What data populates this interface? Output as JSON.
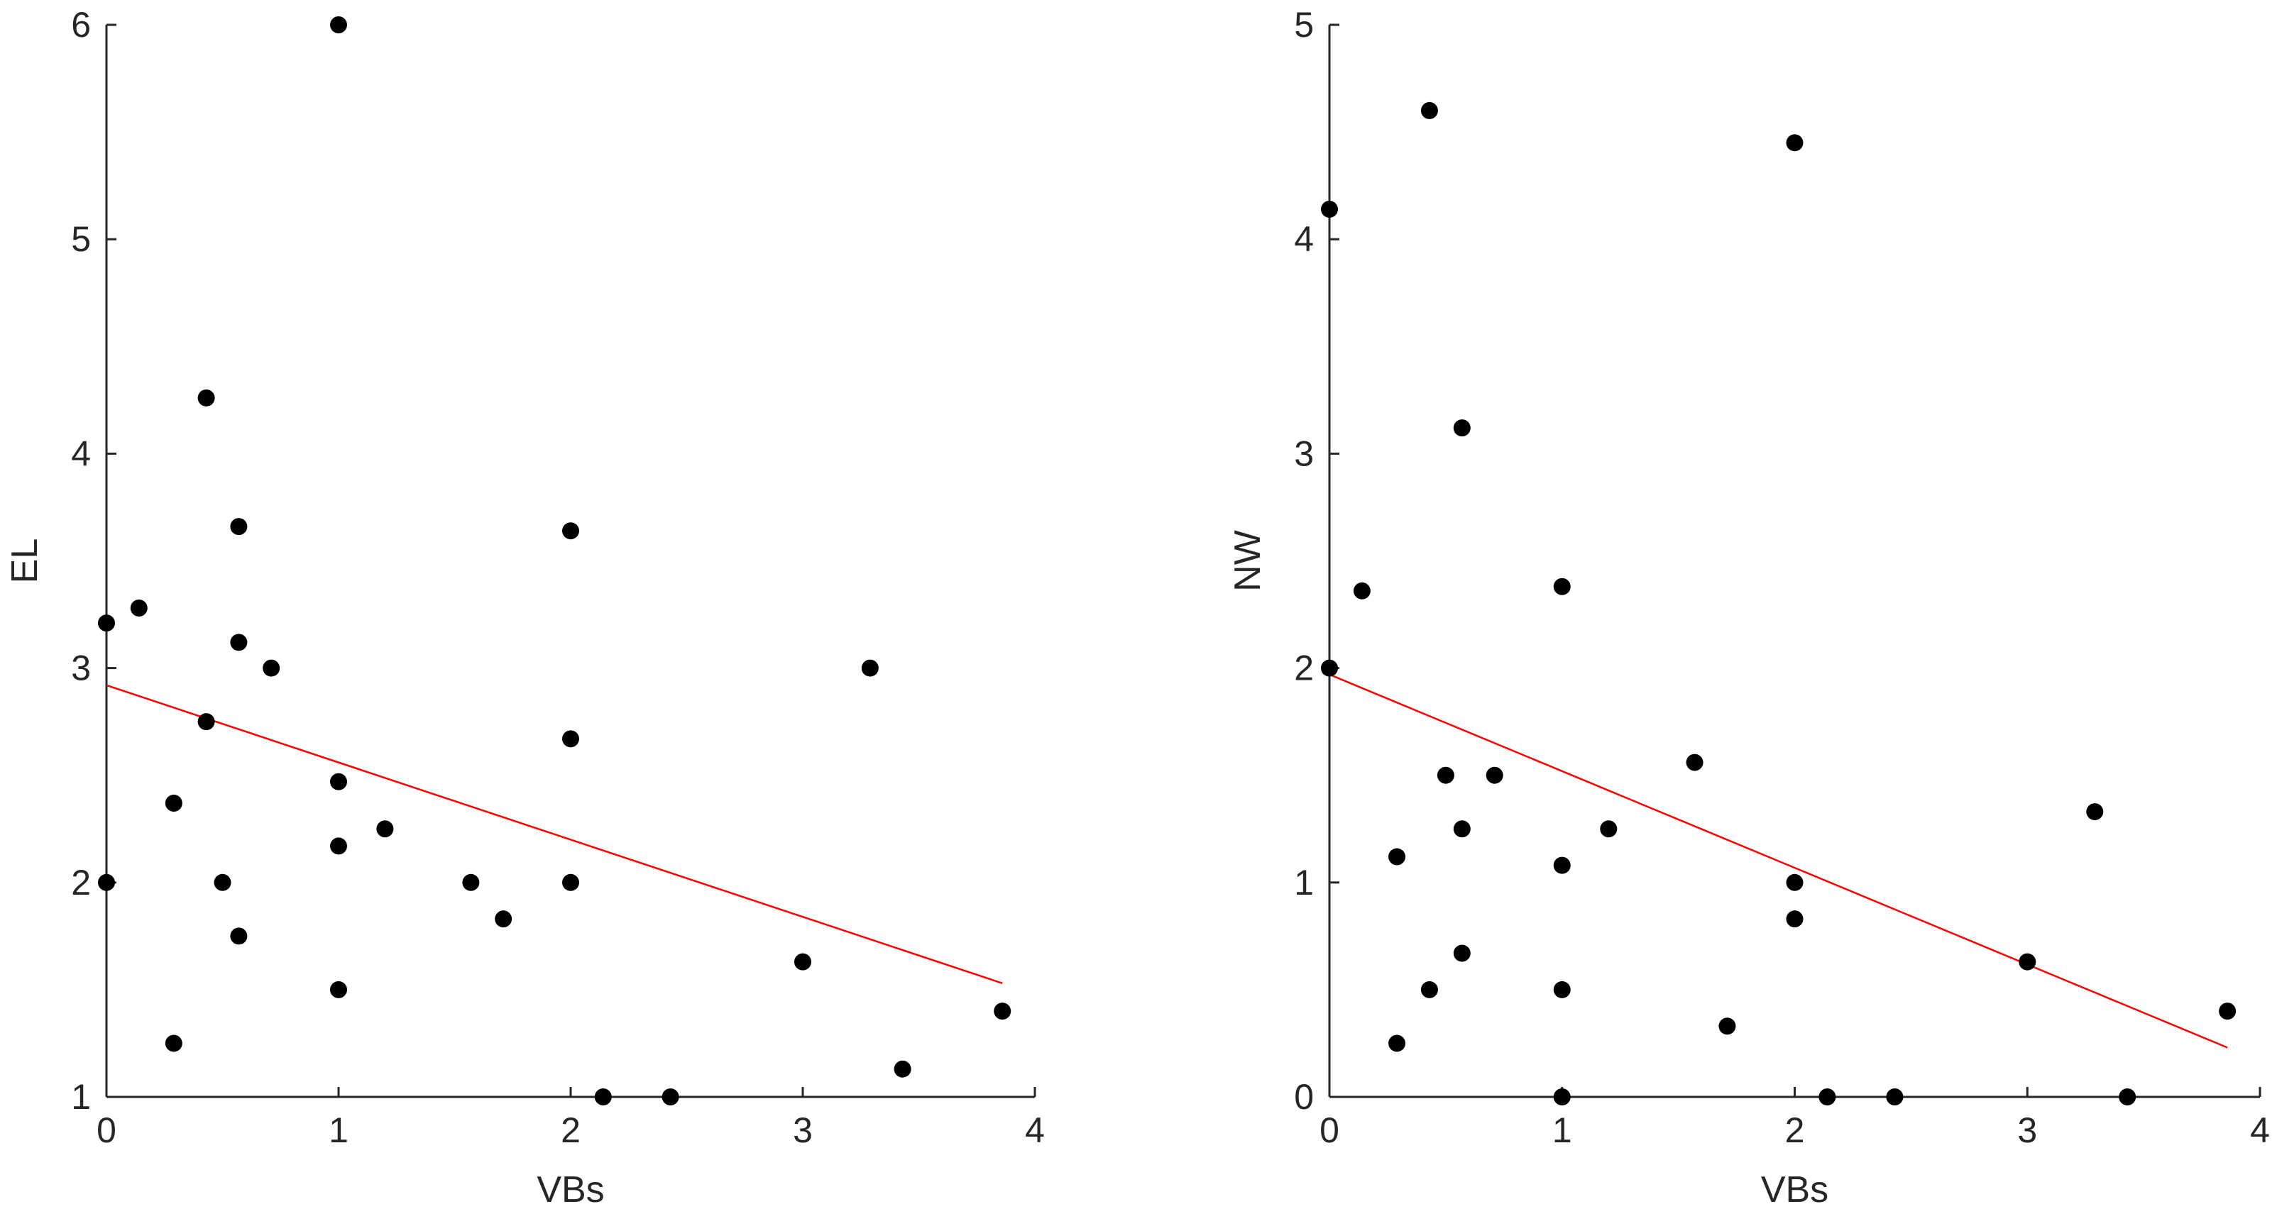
{
  "colors": {
    "point": "#000000",
    "fit_line": "#ff0000",
    "axis": "#262626"
  },
  "chart_data": [
    {
      "type": "scatter",
      "title": "",
      "xlabel": "VBs",
      "ylabel": "EL",
      "xlim": [
        0,
        4
      ],
      "ylim": [
        1,
        6
      ],
      "xticks": [
        0,
        1,
        2,
        3,
        4
      ],
      "yticks": [
        1,
        2,
        3,
        4,
        5,
        6
      ],
      "grid": false,
      "points": [
        {
          "x": 0,
          "y": 3.21
        },
        {
          "x": 0,
          "y": 2.0
        },
        {
          "x": 0.14,
          "y": 3.28
        },
        {
          "x": 0.29,
          "y": 2.37
        },
        {
          "x": 0.29,
          "y": 1.25
        },
        {
          "x": 0.43,
          "y": 4.26
        },
        {
          "x": 0.43,
          "y": 2.75
        },
        {
          "x": 0.5,
          "y": 2.0
        },
        {
          "x": 0.57,
          "y": 3.66
        },
        {
          "x": 0.57,
          "y": 3.12
        },
        {
          "x": 0.57,
          "y": 1.75
        },
        {
          "x": 0.71,
          "y": 3.0
        },
        {
          "x": 1,
          "y": 6.0
        },
        {
          "x": 1,
          "y": 2.47
        },
        {
          "x": 1,
          "y": 2.17
        },
        {
          "x": 1,
          "y": 1.5
        },
        {
          "x": 1.2,
          "y": 2.25
        },
        {
          "x": 1.57,
          "y": 2.0
        },
        {
          "x": 1.71,
          "y": 1.83
        },
        {
          "x": 2,
          "y": 3.64
        },
        {
          "x": 2,
          "y": 2.67
        },
        {
          "x": 2,
          "y": 2.0
        },
        {
          "x": 2.14,
          "y": 1.0
        },
        {
          "x": 2.43,
          "y": 1.0
        },
        {
          "x": 3,
          "y": 1.63
        },
        {
          "x": 3.29,
          "y": 3.0
        },
        {
          "x": 3.43,
          "y": 1.13
        },
        {
          "x": 3.86,
          "y": 1.4
        }
      ],
      "fit_line": {
        "x": [
          0,
          3.86
        ],
        "y": [
          2.92,
          1.53
        ]
      }
    },
    {
      "type": "scatter",
      "title": "",
      "xlabel": "VBs",
      "ylabel": "NW",
      "xlim": [
        0,
        4
      ],
      "ylim": [
        0,
        5
      ],
      "xticks": [
        0,
        1,
        2,
        3,
        4
      ],
      "yticks": [
        0,
        1,
        2,
        3,
        4,
        5
      ],
      "grid": false,
      "points": [
        {
          "x": 0,
          "y": 4.14
        },
        {
          "x": 0,
          "y": 2.0
        },
        {
          "x": 0.14,
          "y": 2.36
        },
        {
          "x": 0.29,
          "y": 1.12
        },
        {
          "x": 0.29,
          "y": 0.25
        },
        {
          "x": 0.43,
          "y": 4.6
        },
        {
          "x": 0.43,
          "y": 0.5
        },
        {
          "x": 0.5,
          "y": 1.5
        },
        {
          "x": 0.57,
          "y": 3.12
        },
        {
          "x": 0.57,
          "y": 1.25
        },
        {
          "x": 0.57,
          "y": 0.67
        },
        {
          "x": 0.71,
          "y": 1.5
        },
        {
          "x": 1,
          "y": 2.38
        },
        {
          "x": 1,
          "y": 1.08
        },
        {
          "x": 1,
          "y": 0.5
        },
        {
          "x": 1,
          "y": 0.0
        },
        {
          "x": 1.2,
          "y": 1.25
        },
        {
          "x": 1.57,
          "y": 1.56
        },
        {
          "x": 1.71,
          "y": 0.33
        },
        {
          "x": 2,
          "y": 4.45
        },
        {
          "x": 2,
          "y": 1.0
        },
        {
          "x": 2,
          "y": 0.83
        },
        {
          "x": 2.14,
          "y": 0.0
        },
        {
          "x": 2.43,
          "y": 0.0
        },
        {
          "x": 3,
          "y": 0.63
        },
        {
          "x": 3.29,
          "y": 1.33
        },
        {
          "x": 3.43,
          "y": 0.0
        },
        {
          "x": 3.86,
          "y": 0.4
        }
      ],
      "fit_line": {
        "x": [
          0,
          3.86
        ],
        "y": [
          1.97,
          0.23
        ]
      }
    }
  ]
}
